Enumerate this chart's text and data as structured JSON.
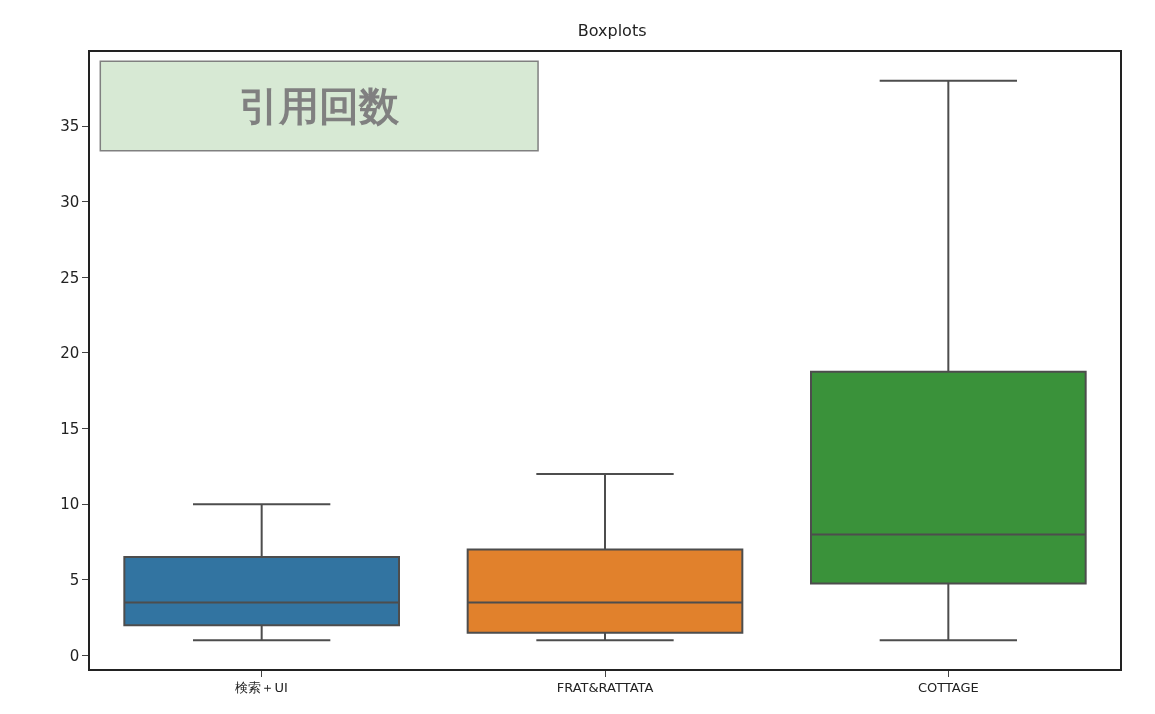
{
  "chart_data": {
    "type": "box",
    "title": "Boxplots",
    "categories": [
      "検索＋UI",
      "FRAT&RATTATA",
      "COTTAGE"
    ],
    "colors": [
      "#3274a1",
      "#e1812c",
      "#3a923a"
    ],
    "boxes": [
      {
        "low": 1,
        "q1": 2,
        "median": 3.5,
        "q3": 6.5,
        "high": 10
      },
      {
        "low": 1,
        "q1": 1.5,
        "median": 3.5,
        "q3": 7,
        "high": 12
      },
      {
        "low": 1,
        "q1": 4.75,
        "median": 8,
        "q3": 18.75,
        "high": 38
      }
    ],
    "ylim": [
      -0.9,
      39.9
    ],
    "yticks": [
      0,
      5,
      10,
      15,
      20,
      25,
      30,
      35
    ],
    "annotations": [
      "引用回数"
    ],
    "legend": false
  }
}
